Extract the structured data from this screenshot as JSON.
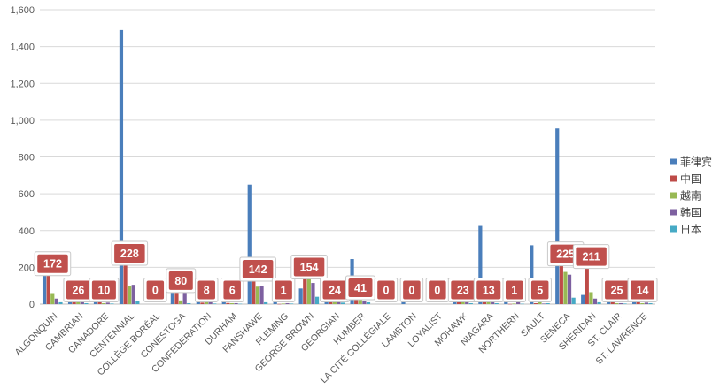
{
  "chart_data": {
    "type": "bar",
    "title": "",
    "xlabel": "",
    "ylabel": "",
    "ylim": [
      0,
      1600
    ],
    "y_ticks": [
      "0",
      "200",
      "400",
      "600",
      "800",
      "1,000",
      "1,200",
      "1,400",
      "1,600"
    ],
    "y_tick_values": [
      0,
      200,
      400,
      600,
      800,
      1000,
      1200,
      1400,
      1600
    ],
    "grid": true,
    "legend_position": "right",
    "categories": [
      "ALGONQUIN",
      "CAMBRIAN",
      "CANADORE",
      "CENTENNIAL",
      "COLLÈGE BORÉAL",
      "CONESTOGA",
      "CONFEDERATION",
      "DURHAM",
      "FANSHAWE",
      "FLEMING",
      "GEORGE BROWN",
      "GEORGIAN",
      "HUMBER",
      "LA CITÉ COLLÉGIALE",
      "LAMBTON",
      "LOYALIST",
      "MOHAWK",
      "NIAGARA",
      "NORTHERN",
      "SAULT",
      "SENECA",
      "SHERIDAN",
      "ST. CLAIR",
      "ST. LAWRENCE"
    ],
    "series": [
      {
        "name": "菲律宾",
        "color": "#4a7ebb",
        "values": [
          172,
          40,
          15,
          1490,
          0,
          85,
          20,
          25,
          650,
          20,
          85,
          40,
          245,
          0,
          15,
          0,
          40,
          425,
          20,
          320,
          955,
          50,
          10,
          25
        ]
      },
      {
        "name": "中国",
        "color": "#be4b48",
        "values": [
          172,
          26,
          10,
          228,
          0,
          80,
          8,
          6,
          142,
          1,
          154,
          24,
          41,
          0,
          0,
          0,
          23,
          13,
          1,
          5,
          225,
          211,
          25,
          14
        ]
      },
      {
        "name": "越南",
        "color": "#98b954",
        "values": [
          60,
          35,
          5,
          100,
          0,
          20,
          15,
          5,
          95,
          3,
          170,
          20,
          55,
          0,
          0,
          0,
          35,
          25,
          3,
          10,
          175,
          65,
          5,
          5
        ]
      },
      {
        "name": "韩国",
        "color": "#7d60a0",
        "values": [
          30,
          15,
          8,
          105,
          0,
          65,
          10,
          5,
          100,
          5,
          115,
          15,
          15,
          0,
          0,
          0,
          20,
          20,
          20,
          3,
          160,
          30,
          5,
          8
        ]
      },
      {
        "name": "日本",
        "color": "#46aac5",
        "values": [
          10,
          5,
          3,
          15,
          0,
          5,
          3,
          2,
          10,
          3,
          40,
          8,
          10,
          0,
          0,
          0,
          5,
          5,
          2,
          5,
          35,
          10,
          3,
          5
        ]
      }
    ],
    "data_labels": {
      "series": "中国",
      "values": [
        "172",
        "26",
        "10",
        "228",
        "0",
        "80",
        "8",
        "6",
        "142",
        "1",
        "154",
        "24",
        "41",
        "0",
        "0",
        "0",
        "23",
        "13",
        "1",
        "5",
        "225",
        "211",
        "25",
        "14"
      ]
    }
  }
}
